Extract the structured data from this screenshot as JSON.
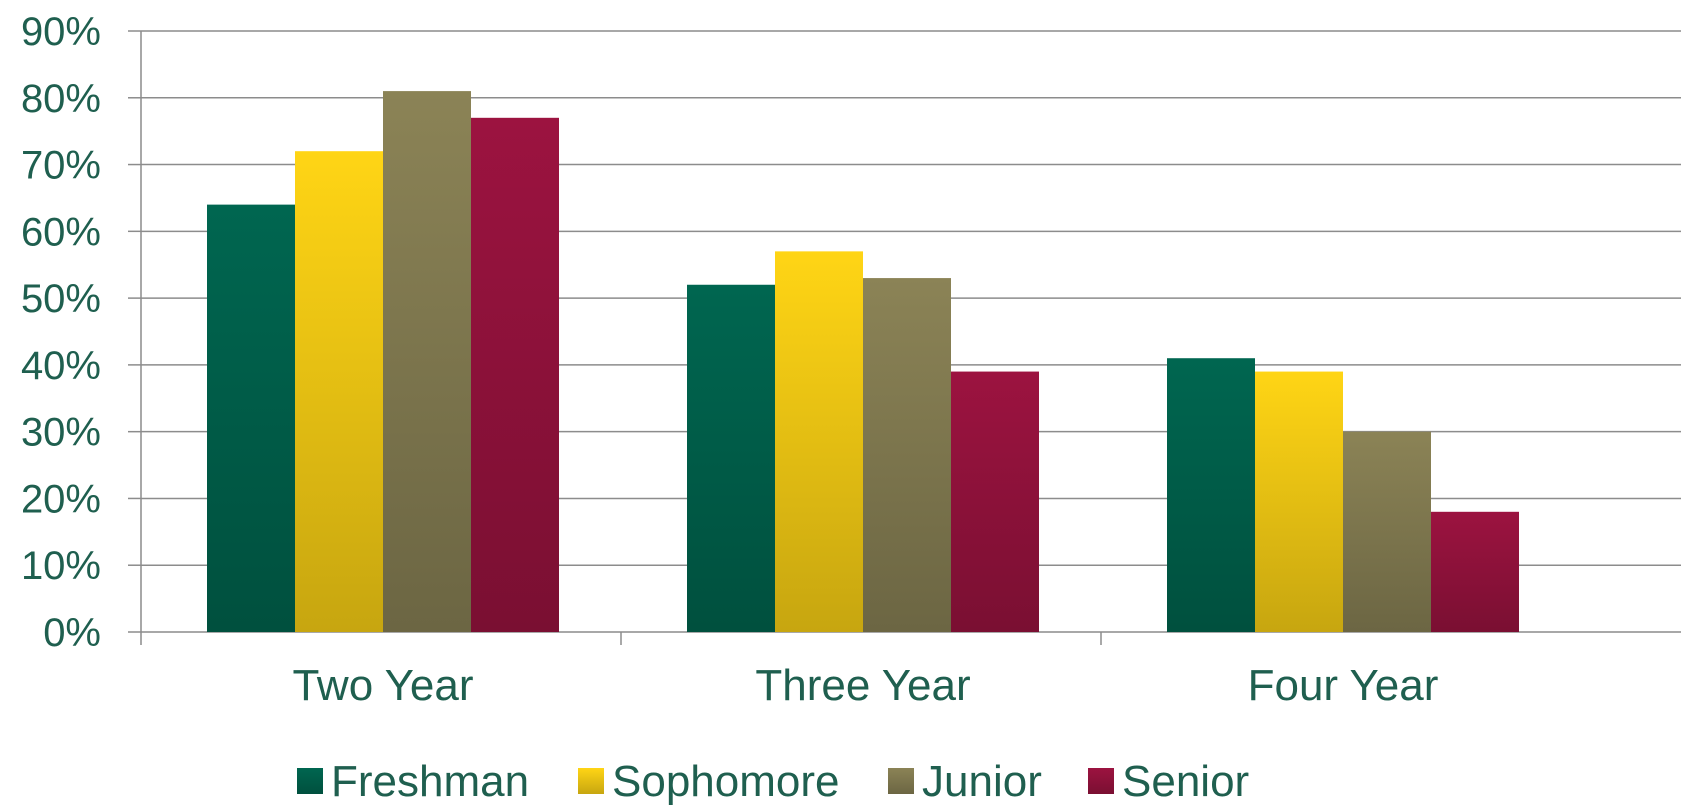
{
  "chart_data": {
    "type": "bar",
    "categories": [
      "Two Year",
      "Three Year",
      "Four Year"
    ],
    "series": [
      {
        "name": "Freshman",
        "values": [
          64,
          52,
          41
        ],
        "color": "#006650"
      },
      {
        "name": "Sophomore",
        "values": [
          72,
          57,
          39
        ],
        "color": "#FFD515"
      },
      {
        "name": "Junior",
        "values": [
          81,
          53,
          30
        ],
        "color": "#8B8356"
      },
      {
        "name": "Senior",
        "values": [
          77,
          39,
          18
        ],
        "color": "#9C1340"
      }
    ],
    "ylim": [
      0,
      90
    ],
    "yticks": [
      "0%",
      "10%",
      "20%",
      "30%",
      "40%",
      "50%",
      "60%",
      "70%",
      "80%",
      "90%"
    ],
    "title": "",
    "xlabel": "",
    "ylabel": "",
    "grid": true,
    "legend_position": "bottom"
  }
}
